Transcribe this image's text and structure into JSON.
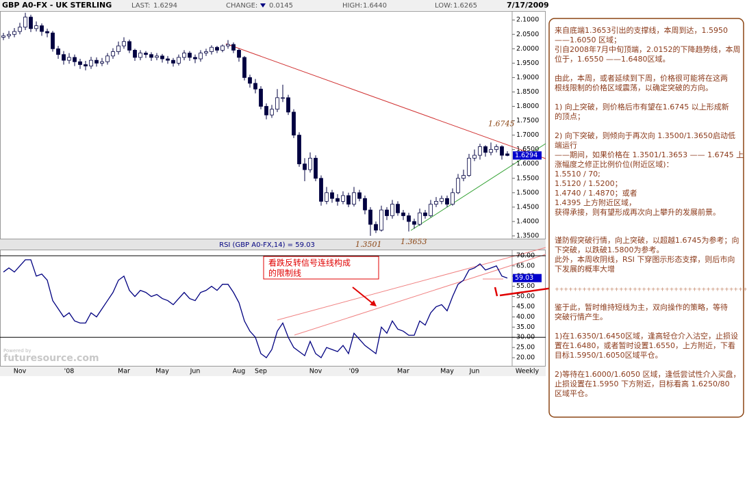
{
  "header": {
    "symbol": "GBP A0-FX - UK STERLING",
    "last_label": "LAST:",
    "last": "1.6294",
    "change_label": "CHANGE:",
    "change": "0.0145",
    "high_label": "HIGH:",
    "high": "1.6440",
    "low_label": "LOW:",
    "low": "1.6265",
    "date": "7/17/2009"
  },
  "chart_data": [
    {
      "type": "candlestick",
      "categories": [
        null,
        null,
        null,
        "Nov",
        null,
        null,
        null,
        null,
        null,
        null,
        null,
        null,
        "'08",
        null,
        null,
        null,
        null,
        null,
        null,
        null,
        null,
        null,
        "Mar",
        null,
        null,
        null,
        null,
        null,
        null,
        "May",
        null,
        null,
        null,
        null,
        null,
        "Jun",
        null,
        null,
        null,
        null,
        null,
        null,
        null,
        "Aug",
        null,
        null,
        null,
        "Sep",
        null,
        null,
        null,
        null,
        null,
        null,
        null,
        null,
        null,
        "Nov",
        null,
        null,
        null,
        null,
        null,
        null,
        "'09",
        null,
        null,
        null,
        null,
        null,
        null,
        null,
        null,
        "Mar",
        null,
        null,
        null,
        null,
        null,
        null,
        null,
        "May",
        null,
        null,
        null,
        null,
        "Jun",
        null,
        null,
        null,
        null,
        null,
        null
      ],
      "open": [
        2.04,
        2.045,
        2.05,
        2.06,
        2.075,
        2.11,
        2.07,
        2.08,
        2.06,
        2.055,
        2.0,
        1.98,
        1.96,
        1.97,
        1.955,
        1.945,
        1.94,
        1.96,
        1.95,
        1.955,
        1.975,
        1.99,
        2.01,
        2.025,
        1.995,
        1.97,
        1.985,
        1.98,
        1.97,
        1.975,
        1.965,
        1.96,
        1.95,
        1.97,
        1.985,
        1.97,
        1.965,
        1.985,
        1.99,
        2.005,
        1.995,
        2.01,
        2.015,
        1.995,
        1.97,
        1.9,
        1.88,
        1.86,
        1.8,
        1.77,
        1.79,
        1.83,
        1.83,
        1.78,
        1.7,
        1.6,
        1.58,
        1.62,
        1.55,
        1.47,
        1.5,
        1.48,
        1.47,
        1.49,
        1.46,
        1.5,
        1.48,
        1.44,
        1.39,
        1.37,
        1.44,
        1.42,
        1.46,
        1.43,
        1.42,
        1.4,
        1.39,
        1.43,
        1.42,
        1.46,
        1.47,
        1.48,
        1.46,
        1.5,
        1.55,
        1.56,
        1.62,
        1.63,
        1.66,
        1.64,
        1.65,
        1.66,
        1.635
      ],
      "high": [
        2.055,
        2.062,
        2.072,
        2.09,
        2.125,
        2.118,
        2.095,
        2.088,
        2.07,
        2.062,
        2.01,
        1.992,
        1.985,
        1.98,
        1.965,
        1.958,
        1.972,
        1.97,
        1.968,
        1.985,
        2.002,
        2.025,
        2.04,
        2.032,
        2.0,
        1.995,
        1.992,
        1.988,
        1.985,
        1.982,
        1.975,
        1.968,
        1.98,
        1.995,
        1.992,
        1.98,
        1.995,
        2.0,
        2.012,
        2.01,
        2.015,
        2.03,
        2.022,
        2.0,
        1.975,
        1.91,
        1.895,
        1.87,
        1.81,
        1.805,
        1.86,
        1.875,
        1.84,
        1.79,
        1.71,
        1.62,
        1.64,
        1.63,
        1.56,
        1.52,
        1.51,
        1.495,
        1.505,
        1.5,
        1.52,
        1.51,
        1.49,
        1.45,
        1.4,
        1.455,
        1.45,
        1.475,
        1.47,
        1.44,
        1.43,
        1.41,
        1.445,
        1.44,
        1.475,
        1.485,
        1.49,
        1.49,
        1.515,
        1.565,
        1.58,
        1.635,
        1.65,
        1.67,
        1.665,
        1.6745,
        1.668,
        1.665,
        1.644
      ],
      "low": [
        2.03,
        2.035,
        2.04,
        2.05,
        2.065,
        2.058,
        2.06,
        2.045,
        2.04,
        1.99,
        1.965,
        1.945,
        1.948,
        1.94,
        1.93,
        1.925,
        1.93,
        1.938,
        1.94,
        1.945,
        1.965,
        1.98,
        2.0,
        1.985,
        1.958,
        1.96,
        1.968,
        1.958,
        1.96,
        1.952,
        1.948,
        1.938,
        1.942,
        1.96,
        1.958,
        1.95,
        1.955,
        1.975,
        1.98,
        1.985,
        1.988,
        2.0,
        1.985,
        1.955,
        1.89,
        1.865,
        1.845,
        1.79,
        1.755,
        1.76,
        1.78,
        1.815,
        1.77,
        1.69,
        1.59,
        1.54,
        1.57,
        1.54,
        1.455,
        1.46,
        1.465,
        1.455,
        1.46,
        1.45,
        1.452,
        1.47,
        1.425,
        1.3501,
        1.36,
        1.365,
        1.405,
        1.41,
        1.42,
        1.405,
        1.3653,
        1.375,
        1.385,
        1.41,
        1.415,
        1.45,
        1.46,
        1.45,
        1.455,
        1.495,
        1.54,
        1.555,
        1.61,
        1.615,
        1.625,
        1.63,
        1.64,
        1.615,
        1.6265
      ],
      "close": [
        2.045,
        2.05,
        2.06,
        2.075,
        2.11,
        2.07,
        2.08,
        2.06,
        2.055,
        2.0,
        1.98,
        1.96,
        1.97,
        1.955,
        1.945,
        1.94,
        1.96,
        1.95,
        1.955,
        1.975,
        1.99,
        2.01,
        2.025,
        1.995,
        1.97,
        1.985,
        1.98,
        1.97,
        1.975,
        1.965,
        1.96,
        1.95,
        1.97,
        1.985,
        1.97,
        1.965,
        1.985,
        1.99,
        2.005,
        1.995,
        2.01,
        2.015,
        1.995,
        1.97,
        1.9,
        1.88,
        1.86,
        1.8,
        1.77,
        1.79,
        1.83,
        1.83,
        1.78,
        1.7,
        1.6,
        1.58,
        1.62,
        1.55,
        1.47,
        1.5,
        1.48,
        1.47,
        1.49,
        1.46,
        1.5,
        1.48,
        1.44,
        1.39,
        1.37,
        1.44,
        1.42,
        1.46,
        1.43,
        1.42,
        1.4,
        1.39,
        1.43,
        1.42,
        1.46,
        1.47,
        1.48,
        1.46,
        1.5,
        1.55,
        1.56,
        1.62,
        1.63,
        1.66,
        1.64,
        1.65,
        1.66,
        1.63,
        1.6294
      ],
      "up_color": "#ffffff",
      "down_color": "#000040",
      "outline_color": "#000040",
      "ylim": [
        1.338,
        2.129
      ],
      "yticks": [
        {
          "value": 1.35,
          "label": "1.3500"
        },
        {
          "value": 1.4,
          "label": "1.4000"
        },
        {
          "value": 1.45,
          "label": "1.4500"
        },
        {
          "value": 1.5,
          "label": "1.5000"
        },
        {
          "value": 1.55,
          "label": "1.5500"
        },
        {
          "value": 1.6,
          "label": "1.6000"
        },
        {
          "value": 1.65,
          "label": "1.6500"
        },
        {
          "value": 1.7,
          "label": "1.7000"
        },
        {
          "value": 1.75,
          "label": "1.7500"
        },
        {
          "value": 1.8,
          "label": "1.8000"
        },
        {
          "value": 1.85,
          "label": "1.8500"
        },
        {
          "value": 1.9,
          "label": "1.9000"
        },
        {
          "value": 1.95,
          "label": "1.9500"
        },
        {
          "value": 2.0,
          "label": "2.0000"
        },
        {
          "value": 2.05,
          "label": "2.0500"
        },
        {
          "value": 2.1,
          "label": "2.1000"
        }
      ]
    },
    {
      "type": "line",
      "title": "RSI (GBP A0-FX,14) = 59.03",
      "color": "#000080",
      "values": [
        62,
        64,
        62,
        65,
        68,
        68,
        60,
        61,
        58,
        48,
        44,
        40,
        42,
        38,
        37,
        37,
        42,
        40,
        44,
        48,
        52,
        58,
        60,
        53,
        50,
        53,
        52,
        50,
        51,
        49,
        48,
        46,
        49,
        52,
        49,
        48,
        52,
        53,
        55,
        53,
        56,
        56,
        52,
        47,
        38,
        33,
        30,
        22,
        20,
        24,
        33,
        37,
        30,
        25,
        23,
        21,
        28,
        22,
        20,
        25,
        24,
        23,
        26,
        22,
        32,
        29,
        26,
        24,
        22,
        35,
        32,
        38,
        34,
        33,
        31,
        31,
        38,
        36,
        42,
        45,
        46,
        43,
        50,
        56,
        58,
        63,
        64,
        66,
        63,
        64,
        65,
        60,
        59.03
      ],
      "ylim": [
        16,
        73
      ],
      "yticks": [
        {
          "value": 20,
          "label": "20.00"
        },
        {
          "value": 25,
          "label": "25.00"
        },
        {
          "value": 30,
          "label": "30.00"
        },
        {
          "value": 35,
          "label": "35.00"
        },
        {
          "value": 40,
          "label": "40.00"
        },
        {
          "value": 45,
          "label": "45.00"
        },
        {
          "value": 50,
          "label": "50.00"
        },
        {
          "value": 55,
          "label": "55.00"
        },
        {
          "value": 60,
          "label": "60.00"
        },
        {
          "value": 65,
          "label": "65.00"
        },
        {
          "value": 70,
          "label": "70.00"
        }
      ],
      "reference_lines": [
        30,
        70
      ]
    }
  ],
  "period_label": "Weekly",
  "watermark": {
    "small": "Powered by",
    "brand": "futuresource.com"
  },
  "callout": [
    "看跌反转信号连线构成",
    "的限制线"
  ],
  "commentary": {
    "paragraphs": [
      [
        "来自底端1.3653引出的支撑线，本周到达，1.5950",
        "——1.6050 区域；",
        "引自2008年7月中旬顶端，2.0152的下降趋势线，本周",
        "位于，1.6550 ——1.6480区域。"
      ],
      [
        "由此，本周，或者延续到下周，价格很可能将在这两",
        "根线限制的价格区域震荡，以确定突破的方向。"
      ],
      [
        "1) 向上突破，则价格后市有望在1.6745 以上形成新",
        "的顶点；"
      ],
      [
        "2) 向下突破，则倾向于再次向 1.3500/1.3650启动低",
        "端运行",
        "——期间，如果价格在 1.3501/1.3653 —— 1.6745 上",
        "涨幅度之修正比例价位(附近区域)：",
        "1.5510 / 70;",
        "1.5120 / 1.5200；",
        "1.4740 / 1.4870；或者",
        "1.4395 上方附近区域，",
        "获得承接，则有望形成再次向上攀升的发展前景。"
      ],
      [
        "谨防假突破行情，向上突破，以超越1.6745为参考；向",
        "下突破，以跌破1.5800为参考。",
        "此外，本周收阴线，RSI 下穿图示形态支撑，则后市向",
        "下发展的概率大增"
      ],
      [
        "鉴于此，暂时维持短线为主，双向操作的策略，等待",
        "突破行情产生。"
      ],
      [
        "1)在1.6350/1.6450区域，逢高轻仓介入沽空，止损设",
        "置在1.6480，或者暂时设置1.6550，上方附近，下看",
        "目标1.5950/1.6050区域平仓。"
      ],
      [
        "2)等待在1.6000/1.6050 区域，逢低尝试性介入买盘，",
        "止损设置在1.5950 下方附近，目标看高 1.6250/80",
        "区域平仓。"
      ]
    ],
    "separator": "+++++++++++++++++++++++++++++++++++++++++++++++++"
  }
}
